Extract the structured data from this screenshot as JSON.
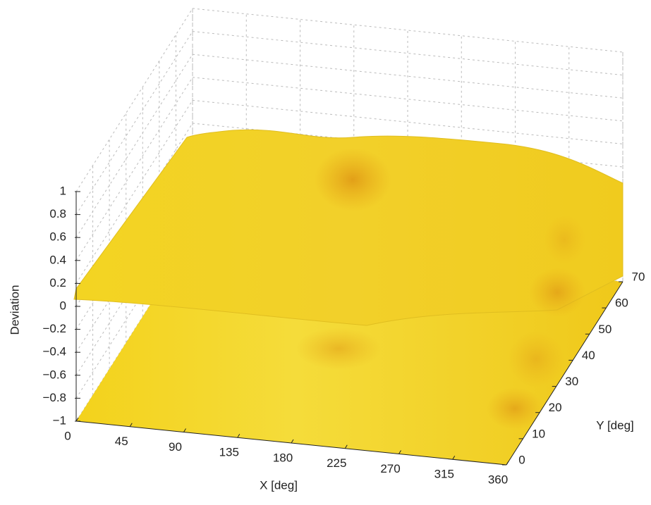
{
  "chart_data": {
    "type": "surface",
    "xlabel": "X [deg]",
    "ylabel": "Y [deg]",
    "zlabel": "Deviation",
    "xlim": [
      0,
      360
    ],
    "xticks": [
      0,
      45,
      90,
      135,
      180,
      225,
      270,
      315,
      360
    ],
    "ylim": [
      0,
      70
    ],
    "yticks": [
      0,
      10,
      20,
      30,
      40,
      50,
      60,
      70
    ],
    "zlim": [
      -1,
      1
    ],
    "zticks": [
      {
        "value": -1,
        "label": "−1"
      },
      {
        "value": -0.8,
        "label": "−0.8"
      },
      {
        "value": -0.6,
        "label": "−0.6"
      },
      {
        "value": -0.4,
        "label": "−0.4"
      },
      {
        "value": -0.2,
        "label": "−0.2"
      },
      0,
      0.2,
      0.4,
      0.6,
      0.8,
      1
    ],
    "color": "#f1cf1b",
    "grid": true
  }
}
